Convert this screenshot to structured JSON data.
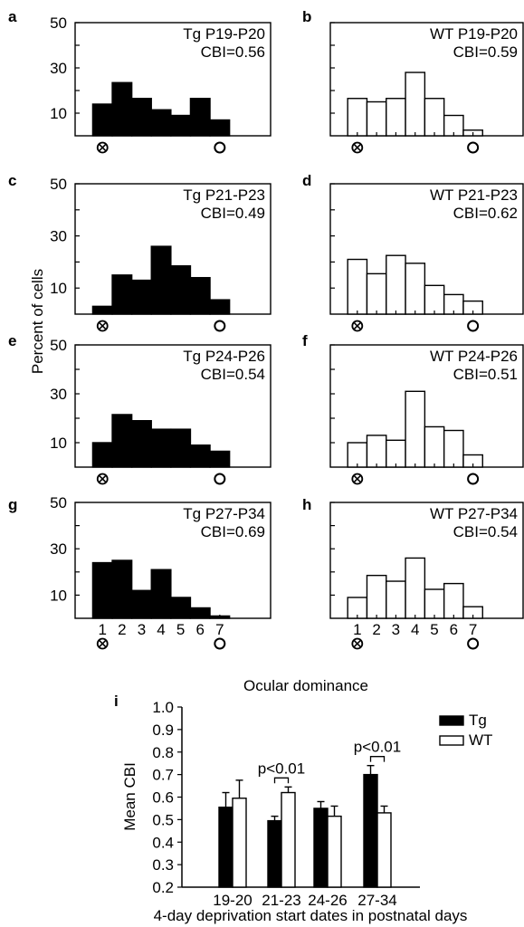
{
  "figure": {
    "y_axis_title": "Percent of cells",
    "x_axis_title": "Ocular dominance"
  },
  "chart_data": [
    {
      "panel": "a",
      "type": "bar",
      "genotype": "Tg",
      "age": "P19-P20",
      "cbi": "CBI=0.56",
      "categories": [
        "1",
        "2",
        "3",
        "4",
        "5",
        "6",
        "7"
      ],
      "values": [
        14,
        23.5,
        16.5,
        11.5,
        9,
        16.5,
        7
      ],
      "ylim": [
        0,
        50
      ],
      "yticks": [
        "50",
        "30",
        "10"
      ],
      "fill": "#000000"
    },
    {
      "panel": "b",
      "type": "bar",
      "genotype": "WT",
      "age": "P19-P20",
      "cbi": "CBI=0.59",
      "categories": [
        "1",
        "2",
        "3",
        "4",
        "5",
        "6",
        "7"
      ],
      "values": [
        16.5,
        15,
        16.5,
        28,
        16.5,
        9,
        2.5
      ],
      "ylim": [
        0,
        50
      ],
      "yticks": [],
      "fill": "#ffffff"
    },
    {
      "panel": "c",
      "type": "bar",
      "genotype": "Tg",
      "age": "P21-P23",
      "cbi": "CBI=0.49",
      "categories": [
        "1",
        "2",
        "3",
        "4",
        "5",
        "6",
        "7"
      ],
      "values": [
        3,
        15,
        13,
        26,
        18.5,
        14,
        5.5
      ],
      "ylim": [
        0,
        50
      ],
      "yticks": [
        "50",
        "30",
        "10"
      ],
      "fill": "#000000"
    },
    {
      "panel": "d",
      "type": "bar",
      "genotype": "WT",
      "age": "P21-P23",
      "cbi": "CBI=0.62",
      "categories": [
        "1",
        "2",
        "3",
        "4",
        "5",
        "6",
        "7"
      ],
      "values": [
        21,
        15.5,
        22.5,
        19.5,
        11,
        7.5,
        5
      ],
      "ylim": [
        0,
        50
      ],
      "yticks": [],
      "fill": "#ffffff"
    },
    {
      "panel": "e",
      "type": "bar",
      "genotype": "Tg",
      "age": "P24-P26",
      "cbi": "CBI=0.54",
      "categories": [
        "1",
        "2",
        "3",
        "4",
        "5",
        "6",
        "7"
      ],
      "values": [
        10,
        21.5,
        19,
        15.5,
        15.5,
        9,
        6.5
      ],
      "ylim": [
        0,
        50
      ],
      "yticks": [
        "50",
        "30",
        "10"
      ],
      "fill": "#000000"
    },
    {
      "panel": "f",
      "type": "bar",
      "genotype": "WT",
      "age": "P24-P26",
      "cbi": "CBI=0.51",
      "categories": [
        "1",
        "2",
        "3",
        "4",
        "5",
        "6",
        "7"
      ],
      "values": [
        10,
        13,
        11,
        31,
        16.5,
        15,
        5
      ],
      "ylim": [
        0,
        50
      ],
      "yticks": [],
      "fill": "#ffffff"
    },
    {
      "panel": "g",
      "type": "bar",
      "genotype": "Tg",
      "age": "P27-P34",
      "cbi": "CBI=0.69",
      "categories": [
        "1",
        "2",
        "3",
        "4",
        "5",
        "6",
        "7"
      ],
      "values": [
        24,
        25,
        12,
        21,
        9,
        4.5,
        1
      ],
      "ylim": [
        0,
        50
      ],
      "yticks": [
        "50",
        "30",
        "10"
      ],
      "fill": "#000000"
    },
    {
      "panel": "h",
      "type": "bar",
      "genotype": "WT",
      "age": "P27-P34",
      "cbi": "CBI=0.54",
      "categories": [
        "1",
        "2",
        "3",
        "4",
        "5",
        "6",
        "7"
      ],
      "values": [
        9,
        18.5,
        16,
        26,
        12.5,
        15,
        5
      ],
      "ylim": [
        0,
        50
      ],
      "yticks": [],
      "fill": "#ffffff"
    },
    {
      "panel": "i",
      "type": "bar",
      "categories": [
        "19-20",
        "21-23",
        "24-26",
        "27-34"
      ],
      "series": [
        {
          "name": "Tg",
          "values": [
            0.555,
            0.495,
            0.55,
            0.7
          ],
          "errors": [
            0.065,
            0.02,
            0.03,
            0.04
          ],
          "fill": "#000000"
        },
        {
          "name": "WT",
          "values": [
            0.595,
            0.62,
            0.515,
            0.53
          ],
          "errors": [
            0.08,
            0.025,
            0.045,
            0.03
          ],
          "fill": "#ffffff"
        }
      ],
      "ylim": [
        0.2,
        1.0
      ],
      "yticks": [
        "1.0",
        "0.9",
        "0.8",
        "0.7",
        "0.6",
        "0.5",
        "0.4",
        "0.3",
        "0.2"
      ],
      "ylabel": "Mean CBI",
      "xlabel": "4-day deprivation start dates in postnatal days",
      "annotations": [
        {
          "category": "21-23",
          "text": "p<0.01"
        },
        {
          "category": "27-34",
          "text": "p<0.01"
        }
      ],
      "legend_position": "top-right"
    }
  ]
}
